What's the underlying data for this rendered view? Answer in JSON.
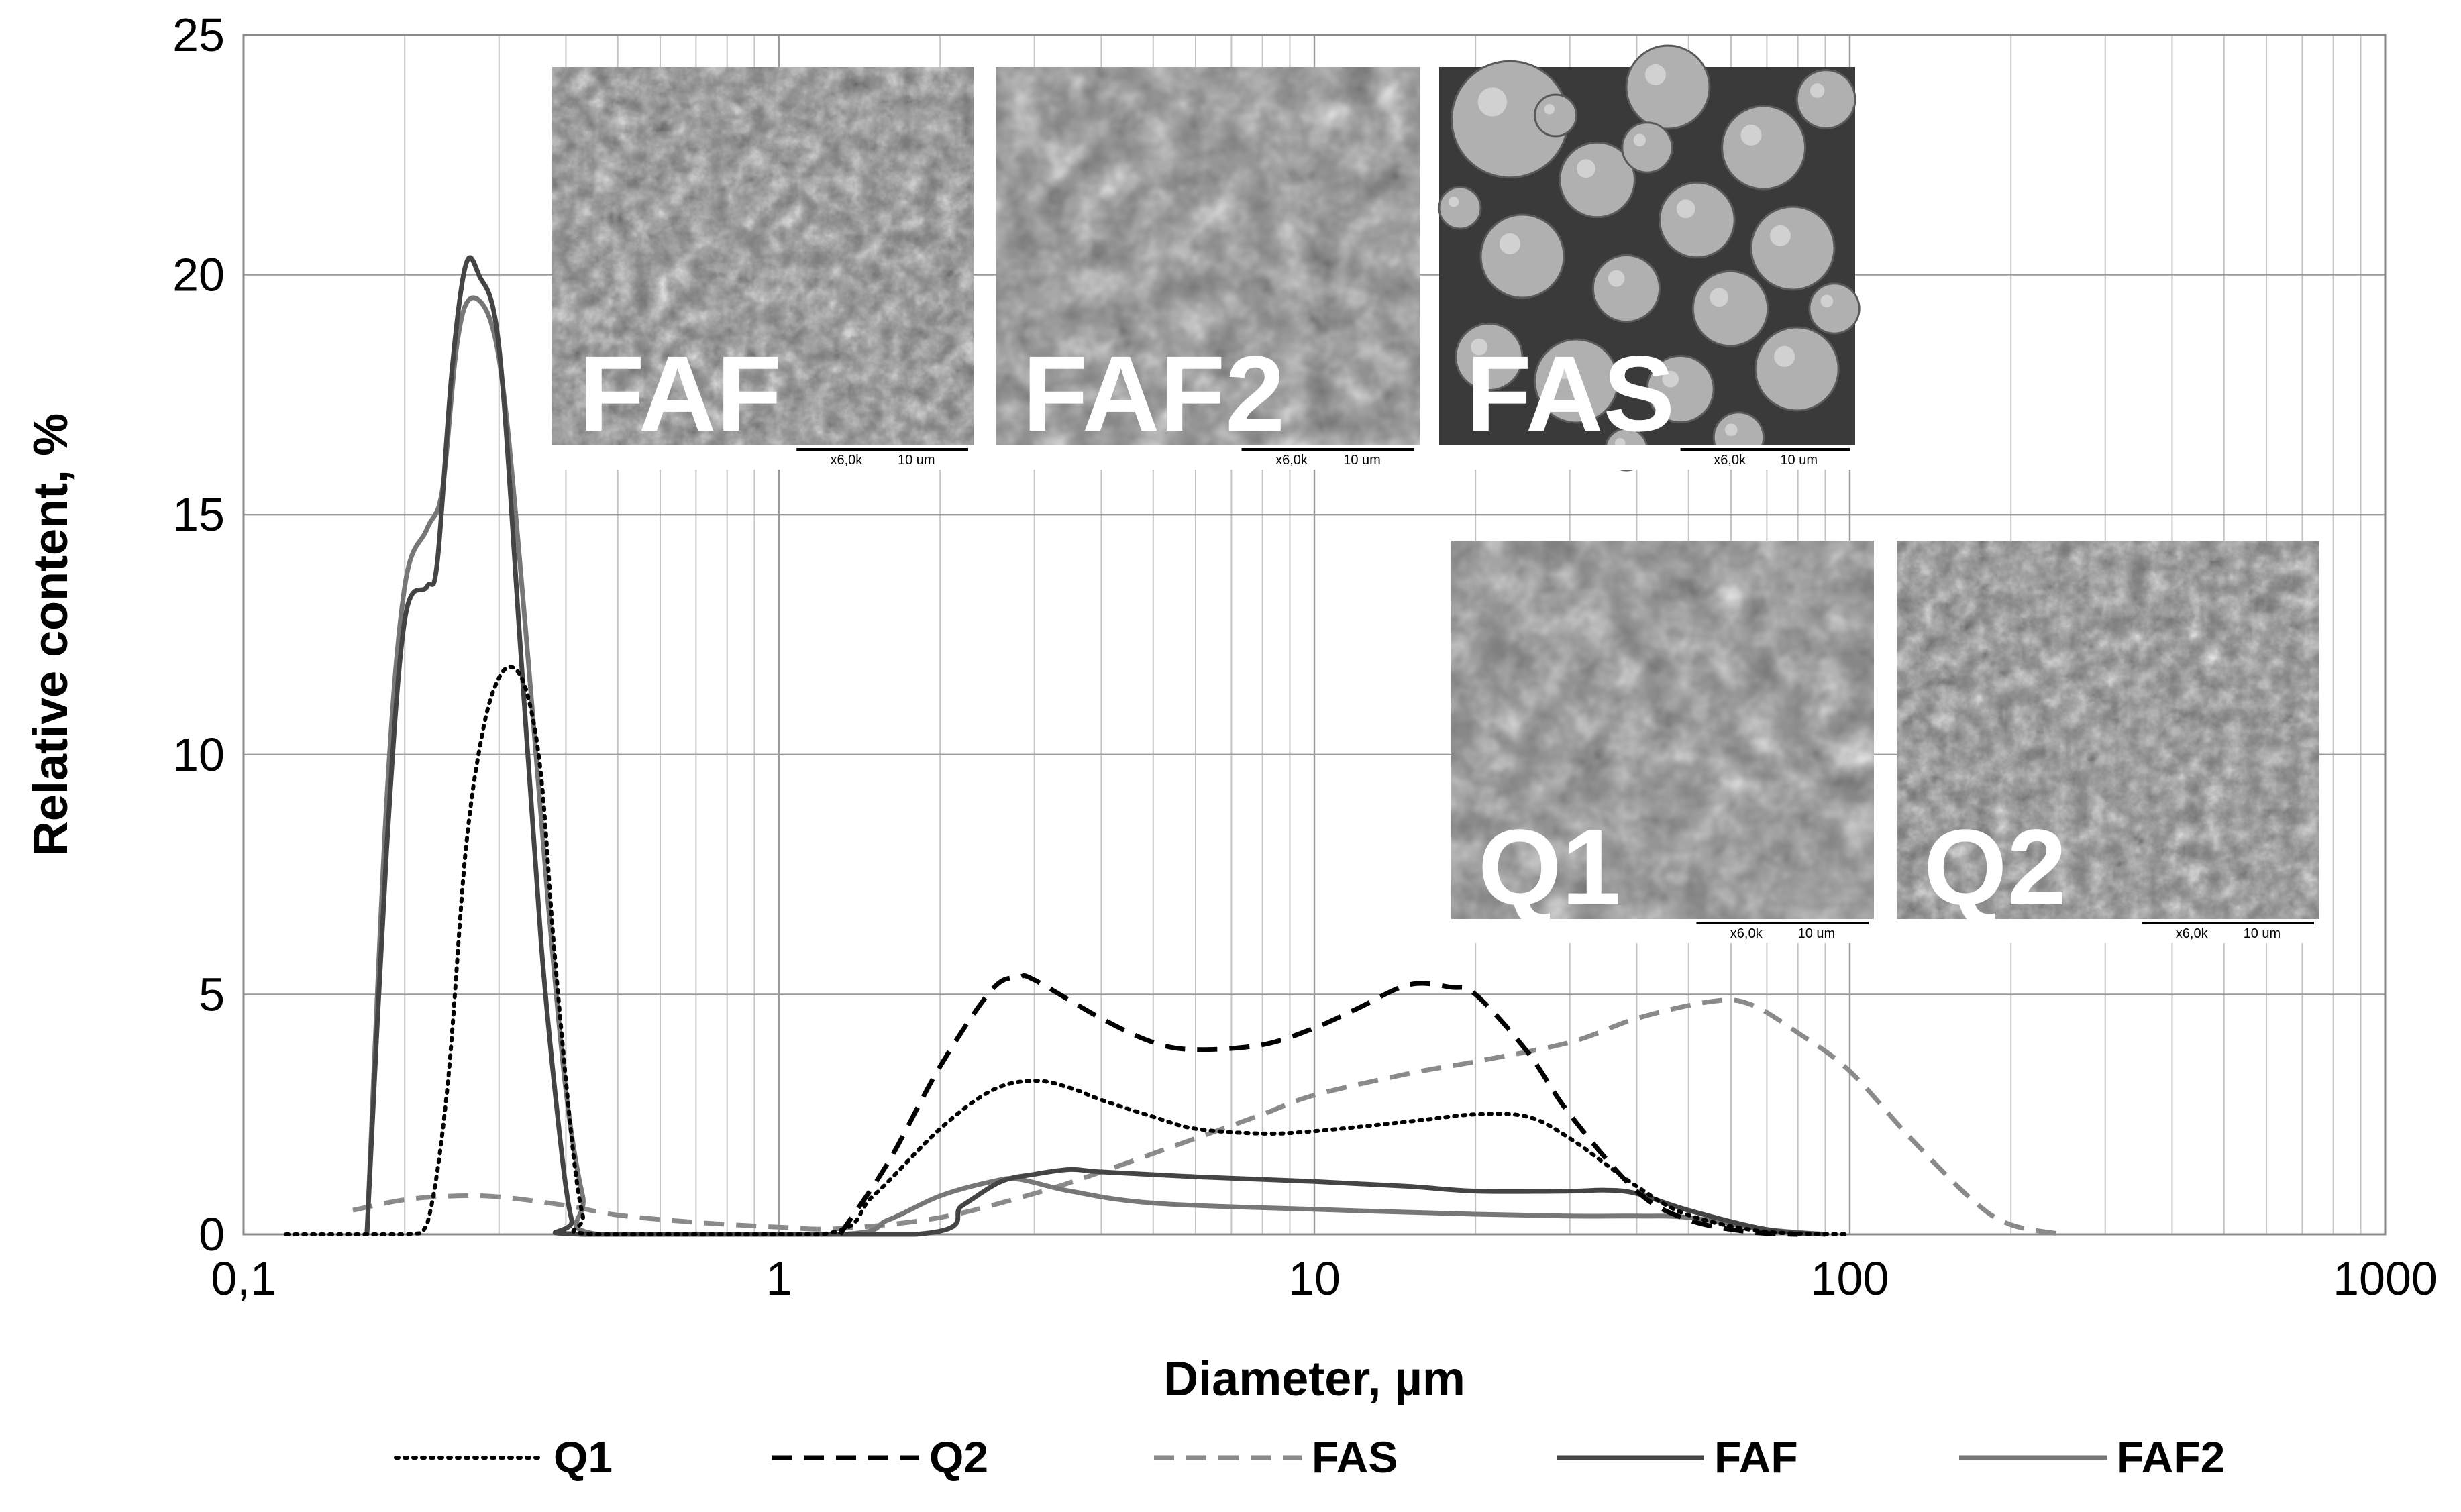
{
  "chart_data": {
    "type": "line",
    "xlabel": "Diameter, µm",
    "ylabel": "Relative content, %",
    "x_scale": "log",
    "xlim": [
      0.1,
      1000
    ],
    "ylim": [
      0,
      25
    ],
    "x_ticks": [
      "0,1",
      "1",
      "10",
      "100",
      "1000"
    ],
    "y_ticks": [
      "0",
      "5",
      "10",
      "15",
      "20",
      "25"
    ],
    "grid": true,
    "legend_position": "bottom",
    "series": [
      {
        "name": "Q1",
        "color": "#000000",
        "dash": "dotted",
        "points": [
          [
            0.12,
            0
          ],
          [
            0.2,
            0
          ],
          [
            0.22,
            0.2
          ],
          [
            0.24,
            3
          ],
          [
            0.26,
            8
          ],
          [
            0.28,
            10.5
          ],
          [
            0.3,
            11.6
          ],
          [
            0.32,
            11.8
          ],
          [
            0.34,
            11.2
          ],
          [
            0.36,
            9.5
          ],
          [
            0.38,
            6
          ],
          [
            0.41,
            2
          ],
          [
            0.43,
            0.4
          ],
          [
            0.45,
            0
          ],
          [
            1.2,
            0
          ],
          [
            1.5,
            0.8
          ],
          [
            2,
            2.2
          ],
          [
            2.5,
            3.0
          ],
          [
            3,
            3.2
          ],
          [
            3.5,
            3.05
          ],
          [
            4,
            2.8
          ],
          [
            5,
            2.45
          ],
          [
            6,
            2.2
          ],
          [
            8,
            2.1
          ],
          [
            10,
            2.15
          ],
          [
            15,
            2.35
          ],
          [
            20,
            2.5
          ],
          [
            25,
            2.45
          ],
          [
            30,
            2.0
          ],
          [
            40,
            1.0
          ],
          [
            50,
            0.4
          ],
          [
            70,
            0.05
          ],
          [
            100,
            0
          ]
        ]
      },
      {
        "name": "Q2",
        "color": "#000000",
        "dash": "dashed",
        "points": [
          [
            1.3,
            0
          ],
          [
            1.6,
            1.5
          ],
          [
            2,
            3.5
          ],
          [
            2.5,
            5.1
          ],
          [
            2.8,
            5.35
          ],
          [
            3,
            5.3
          ],
          [
            4,
            4.5
          ],
          [
            5,
            4.0
          ],
          [
            6,
            3.85
          ],
          [
            8,
            3.95
          ],
          [
            10,
            4.3
          ],
          [
            12,
            4.7
          ],
          [
            15,
            5.2
          ],
          [
            18,
            5.15
          ],
          [
            20,
            5.0
          ],
          [
            25,
            3.8
          ],
          [
            30,
            2.5
          ],
          [
            40,
            0.9
          ],
          [
            50,
            0.3
          ],
          [
            65,
            0.05
          ],
          [
            80,
            0
          ]
        ]
      },
      {
        "name": "FAS",
        "color": "#8a8a8a",
        "dash": "dashed",
        "points": [
          [
            0.16,
            0.5
          ],
          [
            0.2,
            0.72
          ],
          [
            0.25,
            0.8
          ],
          [
            0.3,
            0.78
          ],
          [
            0.4,
            0.6
          ],
          [
            0.5,
            0.4
          ],
          [
            0.7,
            0.25
          ],
          [
            1,
            0.15
          ],
          [
            1.3,
            0.12
          ],
          [
            2,
            0.35
          ],
          [
            3,
            0.85
          ],
          [
            4,
            1.3
          ],
          [
            6,
            2.0
          ],
          [
            8,
            2.5
          ],
          [
            10,
            2.9
          ],
          [
            15,
            3.35
          ],
          [
            20,
            3.6
          ],
          [
            30,
            4.0
          ],
          [
            40,
            4.5
          ],
          [
            55,
            4.85
          ],
          [
            65,
            4.8
          ],
          [
            80,
            4.2
          ],
          [
            100,
            3.4
          ],
          [
            130,
            2.0
          ],
          [
            170,
            0.7
          ],
          [
            200,
            0.2
          ],
          [
            250,
            0
          ]
        ]
      },
      {
        "name": "FAF",
        "color": "#444444",
        "dash": "solid",
        "points": [
          [
            0.17,
            0
          ],
          [
            0.185,
            8
          ],
          [
            0.2,
            12.8
          ],
          [
            0.22,
            13.5
          ],
          [
            0.23,
            14
          ],
          [
            0.245,
            18
          ],
          [
            0.26,
            20.2
          ],
          [
            0.275,
            20
          ],
          [
            0.3,
            18.5
          ],
          [
            0.33,
            12
          ],
          [
            0.36,
            6
          ],
          [
            0.39,
            2
          ],
          [
            0.41,
            0.3
          ],
          [
            0.43,
            0
          ],
          [
            1.8,
            0
          ],
          [
            2.2,
            0.6
          ],
          [
            2.6,
            1.1
          ],
          [
            3,
            1.25
          ],
          [
            3.5,
            1.35
          ],
          [
            4,
            1.3
          ],
          [
            6,
            1.2
          ],
          [
            10,
            1.1
          ],
          [
            15,
            1.0
          ],
          [
            20,
            0.9
          ],
          [
            30,
            0.9
          ],
          [
            35,
            0.92
          ],
          [
            40,
            0.85
          ],
          [
            50,
            0.5
          ],
          [
            70,
            0.1
          ],
          [
            90,
            0
          ]
        ]
      },
      {
        "name": "FAF2",
        "color": "#777777",
        "dash": "solid",
        "points": [
          [
            0.17,
            0
          ],
          [
            0.185,
            9
          ],
          [
            0.2,
            13.5
          ],
          [
            0.22,
            14.7
          ],
          [
            0.235,
            15.5
          ],
          [
            0.25,
            18.5
          ],
          [
            0.265,
            19.5
          ],
          [
            0.29,
            19
          ],
          [
            0.31,
            17
          ],
          [
            0.34,
            12
          ],
          [
            0.37,
            7
          ],
          [
            0.4,
            3
          ],
          [
            0.43,
            0.8
          ],
          [
            0.46,
            0
          ],
          [
            1.3,
            0
          ],
          [
            1.6,
            0.3
          ],
          [
            2,
            0.8
          ],
          [
            2.5,
            1.1
          ],
          [
            2.8,
            1.15
          ],
          [
            3.5,
            0.9
          ],
          [
            5,
            0.65
          ],
          [
            10,
            0.52
          ],
          [
            20,
            0.42
          ],
          [
            30,
            0.38
          ],
          [
            40,
            0.38
          ],
          [
            50,
            0.35
          ],
          [
            70,
            0.1
          ],
          [
            90,
            0
          ]
        ]
      }
    ]
  },
  "sem_images": [
    {
      "label": "FAF",
      "scale_mag": "x6,0k",
      "scale_len": "10 um"
    },
    {
      "label": "FAF2",
      "scale_mag": "x6,0k",
      "scale_len": "10 um"
    },
    {
      "label": "FAS",
      "scale_mag": "x6,0k",
      "scale_len": "10 um"
    },
    {
      "label": "Q1",
      "scale_mag": "x6,0k",
      "scale_len": "10 um"
    },
    {
      "label": "Q2",
      "scale_mag": "x6,0k",
      "scale_len": "10 um"
    }
  ]
}
